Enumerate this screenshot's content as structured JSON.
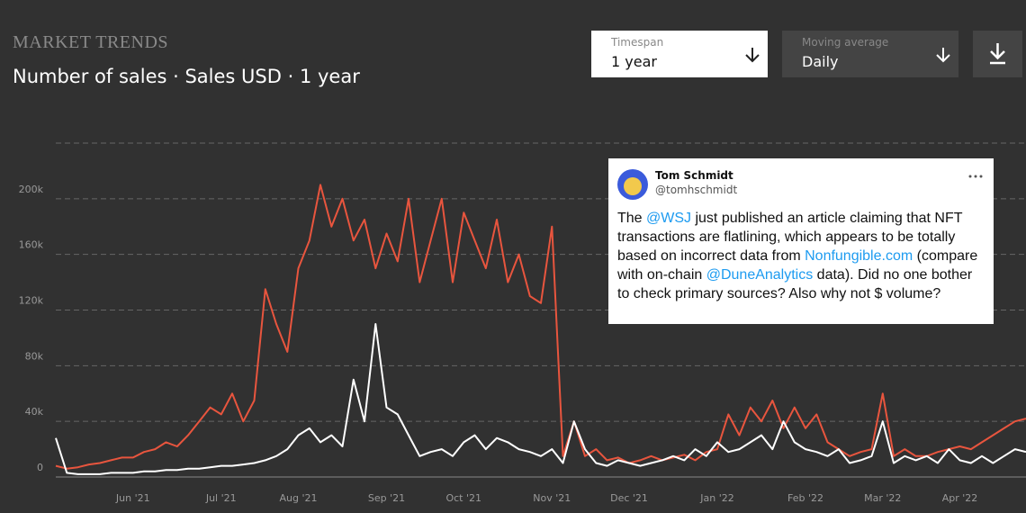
{
  "header": {
    "section": "MARKET TRENDS",
    "title": "Number of sales · Sales USD · 1 year"
  },
  "controls": {
    "timespan": {
      "label": "Timespan",
      "value": "1 year"
    },
    "moving_average": {
      "label": "Moving average",
      "value": "Daily"
    }
  },
  "tweet": {
    "name": "Tom Schmidt",
    "handle": "@tomhschmidt",
    "text": [
      {
        "text": "The "
      },
      {
        "text": "@WSJ",
        "link": true
      },
      {
        "text": " just published an article claiming that NFT transactions are flatlining, which appears to be totally based on incorrect data from "
      },
      {
        "text": "Nonfungible.com",
        "link": true
      },
      {
        "text": " (compare with on-chain "
      },
      {
        "text": "@DuneAnalytics",
        "link": true
      },
      {
        "text": " data). Did no one bother to check primary sources? Also why not $ volume?"
      }
    ]
  },
  "chart_data": {
    "type": "line",
    "categories": [
      null,
      null,
      null,
      null,
      null,
      null,
      null,
      "Jun '21",
      null,
      null,
      null,
      null,
      null,
      null,
      null,
      "Jul '21",
      null,
      null,
      null,
      null,
      null,
      null,
      "Aug '21",
      null,
      null,
      null,
      null,
      null,
      null,
      null,
      "Sep '21",
      null,
      null,
      null,
      null,
      null,
      null,
      "Oct '21",
      null,
      null,
      null,
      null,
      null,
      null,
      null,
      "Nov '21",
      null,
      null,
      null,
      null,
      null,
      null,
      "Dec '21",
      null,
      null,
      null,
      null,
      null,
      null,
      null,
      "Jan '22",
      null,
      null,
      null,
      null,
      null,
      null,
      null,
      "Feb '22",
      null,
      null,
      null,
      null,
      null,
      null,
      "Mar '22",
      null,
      null,
      null,
      null,
      null,
      null,
      "Apr '22",
      null,
      null,
      null,
      null,
      null,
      null
    ],
    "series": [
      {
        "color": "#e8553e",
        "values": [
          8000,
          6000,
          7000,
          9000,
          10000,
          12000,
          14000,
          14000,
          18000,
          20000,
          25000,
          22000,
          30000,
          40000,
          50000,
          45000,
          60000,
          40000,
          55000,
          135000,
          110000,
          90000,
          150000,
          170000,
          210000,
          180000,
          200000,
          170000,
          185000,
          150000,
          175000,
          155000,
          200000,
          140000,
          170000,
          200000,
          140000,
          190000,
          170000,
          150000,
          185000,
          140000,
          160000,
          130000,
          125000,
          180000,
          15000,
          40000,
          15000,
          20000,
          12000,
          14000,
          10000,
          12000,
          15000,
          12000,
          14000,
          16000,
          12000,
          18000,
          20000,
          45000,
          30000,
          50000,
          40000,
          55000,
          35000,
          50000,
          35000,
          45000,
          25000,
          20000,
          15000,
          18000,
          20000,
          60000,
          15000,
          20000,
          15000,
          15000,
          18000,
          20000,
          22000,
          20000,
          25000,
          30000,
          35000,
          40000,
          42000
        ]
      },
      {
        "color": "#ffffff",
        "values": [
          28000,
          3000,
          2000,
          2000,
          2000,
          3000,
          3000,
          3000,
          4000,
          4000,
          5000,
          5000,
          6000,
          6000,
          7000,
          8000,
          8000,
          9000,
          10000,
          12000,
          15000,
          20000,
          30000,
          35000,
          25000,
          30000,
          22000,
          70000,
          40000,
          110000,
          50000,
          45000,
          30000,
          15000,
          18000,
          20000,
          15000,
          25000,
          30000,
          20000,
          28000,
          25000,
          20000,
          18000,
          15000,
          20000,
          10000,
          40000,
          20000,
          10000,
          8000,
          12000,
          10000,
          8000,
          10000,
          12000,
          15000,
          12000,
          20000,
          15000,
          25000,
          18000,
          20000,
          25000,
          30000,
          20000,
          40000,
          25000,
          20000,
          18000,
          15000,
          20000,
          10000,
          12000,
          15000,
          40000,
          10000,
          15000,
          12000,
          15000,
          10000,
          20000,
          12000,
          10000,
          15000,
          10000,
          15000,
          20000,
          18000
        ]
      }
    ],
    "ylim": [
      0,
      240000
    ],
    "yticks": [
      {
        "value": 0,
        "label": "0"
      },
      {
        "value": 40000,
        "label": "40k"
      },
      {
        "value": 80000,
        "label": "80k"
      },
      {
        "value": 120000,
        "label": "120k"
      },
      {
        "value": 160000,
        "label": "160k"
      },
      {
        "value": 200000,
        "label": "200k"
      }
    ],
    "grid": true
  }
}
